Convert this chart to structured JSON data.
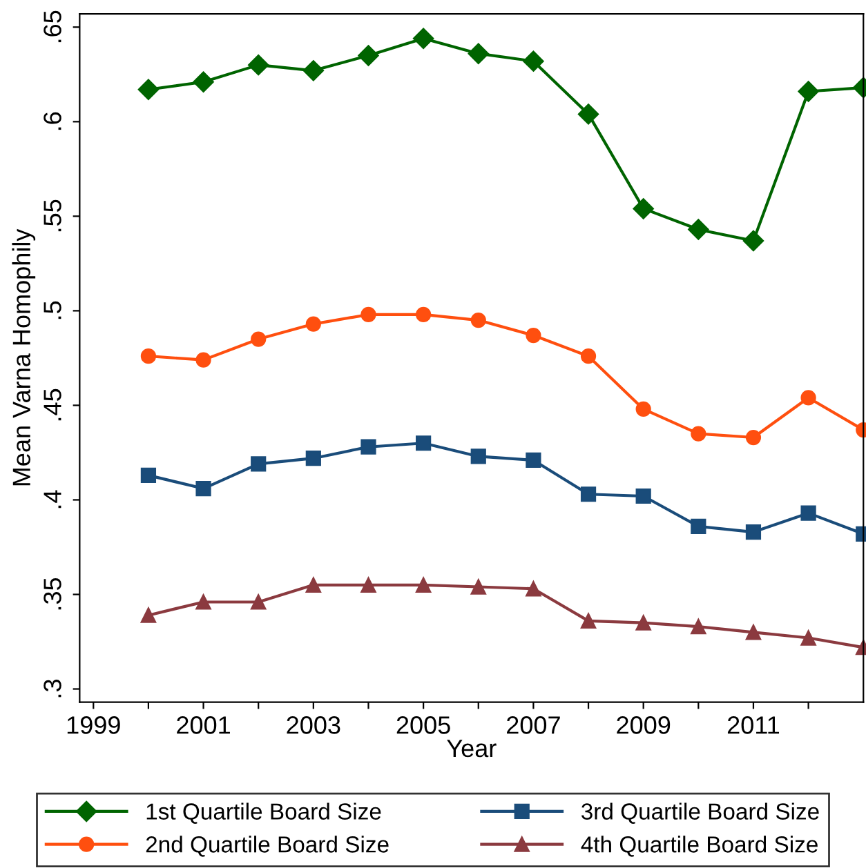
{
  "chart_data": {
    "type": "line",
    "xlabel": "Year",
    "ylabel": "Mean Varna Homophily",
    "x": [
      2000,
      2001,
      2002,
      2003,
      2004,
      2005,
      2006,
      2007,
      2008,
      2009,
      2010,
      2011,
      2012,
      2013
    ],
    "series": [
      {
        "name": "1st Quartile Board Size",
        "color": "#006400",
        "marker": "diamond",
        "values": [
          0.617,
          0.621,
          0.63,
          0.627,
          0.635,
          0.644,
          0.636,
          0.632,
          0.604,
          0.554,
          0.543,
          0.537,
          0.616,
          0.618
        ]
      },
      {
        "name": "2nd Quartile Board Size",
        "color": "#ff4f0f",
        "marker": "circle",
        "values": [
          0.476,
          0.474,
          0.485,
          0.493,
          0.498,
          0.498,
          0.495,
          0.487,
          0.476,
          0.448,
          0.435,
          0.433,
          0.454,
          0.437
        ]
      },
      {
        "name": "3rd Quartile Board Size",
        "color": "#1a4c7a",
        "marker": "square",
        "values": [
          0.413,
          0.406,
          0.419,
          0.422,
          0.428,
          0.43,
          0.423,
          0.421,
          0.403,
          0.402,
          0.386,
          0.383,
          0.393,
          0.382
        ]
      },
      {
        "name": "4th Quartile Board Size",
        "color": "#8b3a3f",
        "marker": "triangle",
        "values": [
          0.339,
          0.346,
          0.346,
          0.355,
          0.355,
          0.355,
          0.354,
          0.353,
          0.336,
          0.335,
          0.333,
          0.33,
          0.327,
          0.322
        ]
      }
    ],
    "xlim": [
      1998.75,
      2013
    ],
    "ylim": [
      0.293,
      0.657
    ],
    "xticks": [
      1999,
      {
        "value": 2000,
        "label": null
      },
      2001,
      {
        "value": 2002,
        "label": null
      },
      2003,
      {
        "value": 2004,
        "label": null
      },
      2005,
      {
        "value": 2006,
        "label": null
      },
      2007,
      {
        "value": 2008,
        "label": null
      },
      2009,
      {
        "value": 2010,
        "label": null
      },
      2011,
      {
        "value": 2012,
        "label": null
      }
    ],
    "yticks": [
      {
        "value": 0.3,
        "label": ".3"
      },
      {
        "value": 0.35,
        "label": ".35"
      },
      {
        "value": 0.4,
        "label": ".4"
      },
      {
        "value": 0.45,
        "label": ".45"
      },
      {
        "value": 0.5,
        "label": ".5"
      },
      {
        "value": 0.55,
        "label": ".55"
      },
      {
        "value": 0.6,
        "label": ".6"
      },
      {
        "value": 0.65,
        "label": ".65"
      }
    ],
    "grid": false,
    "legend": "bottom",
    "line_style": "solid"
  }
}
